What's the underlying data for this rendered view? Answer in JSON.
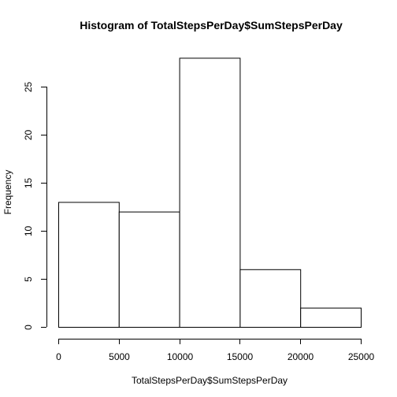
{
  "chart_data": {
    "type": "bar",
    "title": "Histogram of TotalStepsPerDay$SumStepsPerDay",
    "xlabel": "TotalStepsPerDay$SumStepsPerDay",
    "ylabel": "Frequency",
    "bins": [
      {
        "from": 0,
        "to": 5000,
        "count": 13
      },
      {
        "from": 5000,
        "to": 10000,
        "count": 12
      },
      {
        "from": 10000,
        "to": 15000,
        "count": 28
      },
      {
        "from": 15000,
        "to": 20000,
        "count": 6
      },
      {
        "from": 20000,
        "to": 25000,
        "count": 2
      }
    ],
    "xlim": [
      0,
      25000
    ],
    "ylim": [
      0,
      28
    ],
    "x_ticks": [
      0,
      5000,
      10000,
      15000,
      20000,
      25000
    ],
    "y_ticks": [
      0,
      5,
      10,
      15,
      20,
      25
    ],
    "grid": false,
    "legend": "none"
  }
}
